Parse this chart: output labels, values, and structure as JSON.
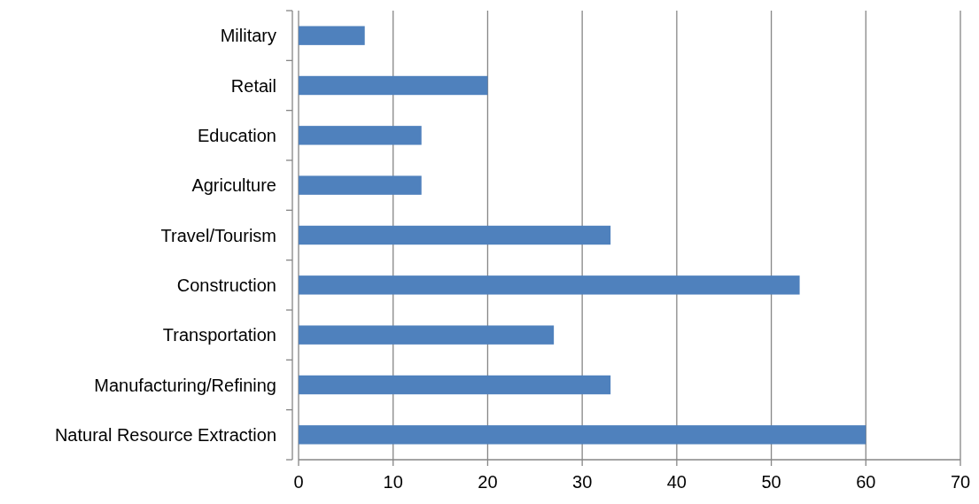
{
  "chart_data": {
    "type": "bar",
    "orientation": "horizontal",
    "categories": [
      "Military",
      "Retail",
      "Education",
      "Agriculture",
      "Travel/Tourism",
      "Construction",
      "Transportation",
      "Manufacturing/Refining",
      "Natural Resource Extraction"
    ],
    "values": [
      7,
      20,
      13,
      13,
      33,
      53,
      27,
      33,
      60
    ],
    "color": "#4f81bd",
    "xlim": [
      0,
      70
    ],
    "xticks": [
      0,
      10,
      20,
      30,
      40,
      50,
      60,
      70
    ],
    "grid": "x"
  }
}
